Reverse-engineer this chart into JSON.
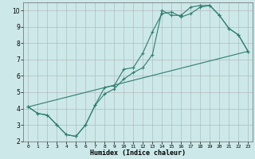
{
  "xlabel": "Humidex (Indice chaleur)",
  "bg_color": "#cce8e8",
  "grid_color": "#b0b0b0",
  "line_color": "#2e7d6e",
  "xlim": [
    -0.5,
    23.5
  ],
  "ylim": [
    2,
    10.5
  ],
  "xticks": [
    0,
    1,
    2,
    3,
    4,
    5,
    6,
    7,
    8,
    9,
    10,
    11,
    12,
    13,
    14,
    15,
    16,
    17,
    18,
    19,
    20,
    21,
    22,
    23
  ],
  "yticks": [
    2,
    3,
    4,
    5,
    6,
    7,
    8,
    9,
    10
  ],
  "line1_x": [
    0,
    1,
    2,
    3,
    4,
    5,
    6,
    7,
    8,
    9,
    10,
    11,
    12,
    13,
    14,
    15,
    16,
    17,
    18,
    19,
    20,
    21,
    22,
    23
  ],
  "line1_y": [
    4.1,
    3.7,
    3.6,
    3.0,
    2.4,
    2.3,
    3.0,
    4.2,
    5.3,
    5.4,
    6.4,
    6.5,
    7.4,
    8.7,
    9.8,
    9.9,
    9.6,
    9.8,
    10.2,
    10.3,
    9.7,
    8.9,
    8.5,
    7.5
  ],
  "line2_x": [
    0,
    1,
    2,
    3,
    4,
    5,
    6,
    7,
    8,
    9,
    10,
    11,
    12,
    13,
    14,
    15,
    16,
    17,
    18,
    19,
    20,
    21,
    22,
    23
  ],
  "line2_y": [
    4.1,
    3.7,
    3.6,
    3.0,
    2.4,
    2.3,
    3.0,
    4.2,
    4.9,
    5.2,
    5.8,
    6.2,
    6.5,
    7.3,
    10.0,
    9.7,
    9.7,
    10.2,
    10.3,
    10.3,
    9.7,
    8.9,
    8.5,
    7.5
  ],
  "line3_x": [
    0,
    23
  ],
  "line3_y": [
    4.1,
    7.5
  ]
}
